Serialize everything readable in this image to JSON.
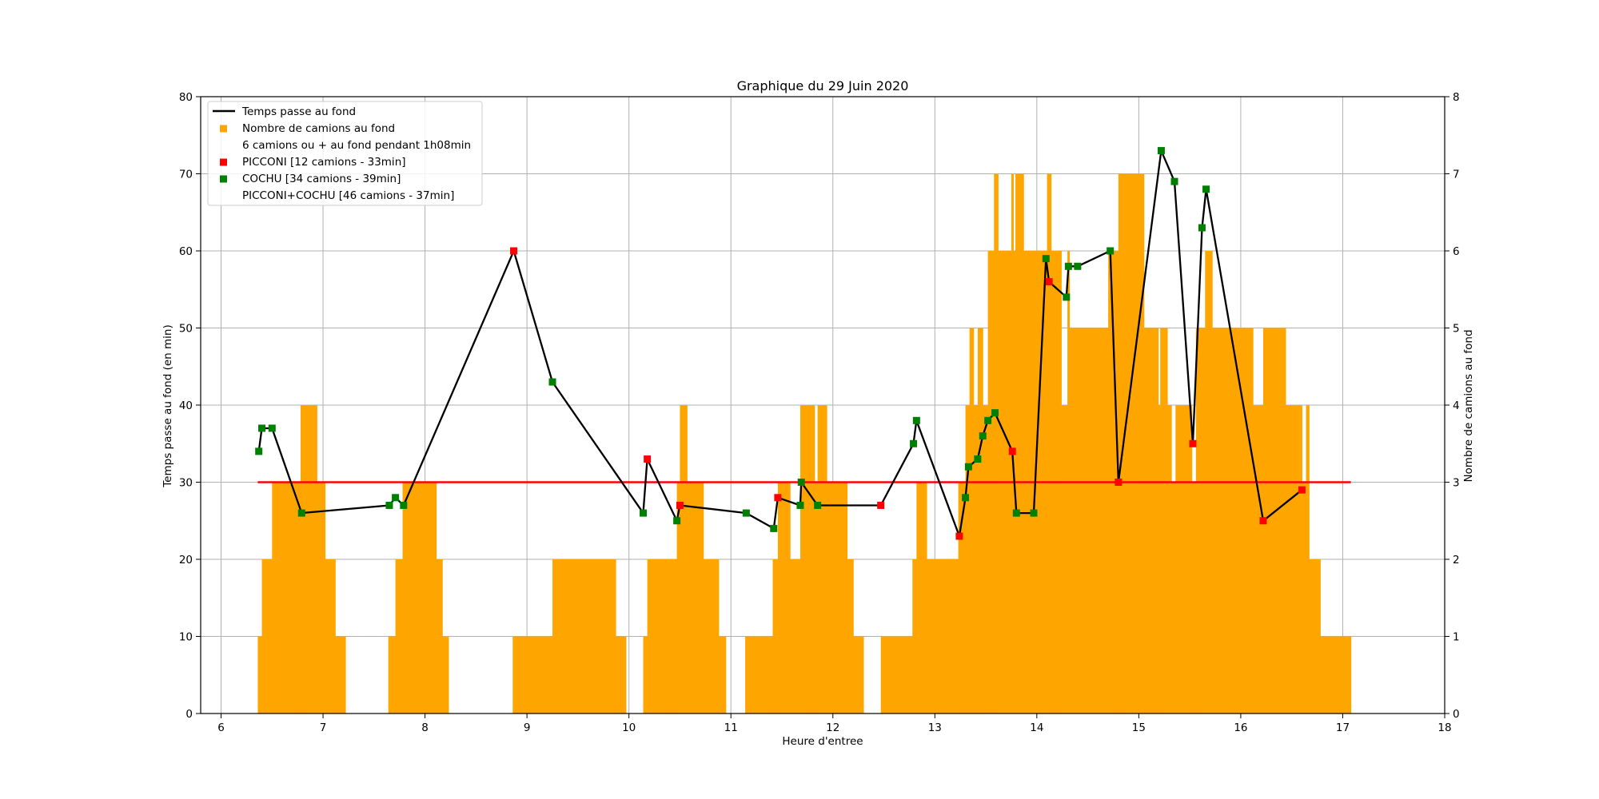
{
  "chart_data": {
    "type": "combo",
    "title": "Graphique du 29 Juin 2020",
    "xlabel": "Heure d'entree",
    "ylabel_left": "Temps passe au fond (en min)",
    "ylabel_right": "Nombre de camions au fond",
    "xlim": [
      5.8,
      18
    ],
    "ylim_left": [
      0,
      80
    ],
    "ylim_right": [
      0,
      8
    ],
    "x_ticks": [
      "6",
      "7",
      "8",
      "9",
      "10",
      "11",
      "12",
      "13",
      "14",
      "15",
      "16",
      "17",
      "18"
    ],
    "y_left_ticks": [
      "0",
      "10",
      "20",
      "30",
      "40",
      "50",
      "60",
      "70",
      "80"
    ],
    "y_right_ticks": [
      "0",
      "1",
      "2",
      "3",
      "4",
      "5",
      "6",
      "7",
      "8"
    ],
    "grid": true,
    "legend_position": "top-left",
    "legend": [
      {
        "label": "Temps passe au fond",
        "marker": "line",
        "color": "#000000"
      },
      {
        "label": "Nombre de camions au fond",
        "marker": "square",
        "color": "#ffa500"
      },
      {
        "label": "6 camions ou + au fond pendant 1h08min",
        "marker": "none",
        "color": ""
      },
      {
        "label": "PICCONI [12 camions - 33min]",
        "marker": "square",
        "color": "#ff0000"
      },
      {
        "label": "COCHU [34 camions - 39min]",
        "marker": "square",
        "color": "#008000"
      },
      {
        "label": "PICCONI+COCHU [46 camions - 37min]",
        "marker": "none",
        "color": ""
      }
    ],
    "colors": {
      "bars": "#ffa500",
      "line": "#000000",
      "reference": "#ff0000",
      "picconi": "#ff0000",
      "cochu": "#008000"
    },
    "reference_line": {
      "y": 30,
      "x_start": 6.36,
      "x_end": 17.08
    },
    "truck_count_steps": [
      [
        6.36,
        6.4,
        1
      ],
      [
        6.4,
        6.5,
        2
      ],
      [
        6.5,
        6.78,
        3
      ],
      [
        6.78,
        6.94,
        4
      ],
      [
        6.94,
        7.02,
        3
      ],
      [
        7.02,
        7.12,
        2
      ],
      [
        7.12,
        7.22,
        1
      ],
      [
        7.64,
        7.71,
        1
      ],
      [
        7.71,
        7.78,
        2
      ],
      [
        7.78,
        8.11,
        3
      ],
      [
        8.11,
        8.17,
        2
      ],
      [
        8.17,
        8.23,
        1
      ],
      [
        8.86,
        9.25,
        1
      ],
      [
        9.25,
        9.87,
        2
      ],
      [
        9.87,
        9.97,
        1
      ],
      [
        10.14,
        10.18,
        1
      ],
      [
        10.18,
        10.47,
        2
      ],
      [
        10.47,
        10.5,
        3
      ],
      [
        10.5,
        10.57,
        4
      ],
      [
        10.57,
        10.73,
        3
      ],
      [
        10.73,
        10.88,
        2
      ],
      [
        10.88,
        10.95,
        1
      ],
      [
        11.14,
        11.41,
        1
      ],
      [
        11.41,
        11.46,
        2
      ],
      [
        11.46,
        11.58,
        3
      ],
      [
        11.58,
        11.68,
        2
      ],
      [
        11.68,
        11.82,
        4
      ],
      [
        11.82,
        11.85,
        3
      ],
      [
        11.85,
        11.94,
        4
      ],
      [
        11.94,
        12.14,
        3
      ],
      [
        12.14,
        12.2,
        2
      ],
      [
        12.2,
        12.3,
        1
      ],
      [
        12.47,
        12.78,
        1
      ],
      [
        12.78,
        12.82,
        2
      ],
      [
        12.82,
        12.92,
        3
      ],
      [
        12.92,
        13.23,
        2
      ],
      [
        13.23,
        13.3,
        3
      ],
      [
        13.3,
        13.34,
        4
      ],
      [
        13.34,
        13.38,
        5
      ],
      [
        13.38,
        13.42,
        4
      ],
      [
        13.42,
        13.47,
        5
      ],
      [
        13.47,
        13.52,
        4
      ],
      [
        13.52,
        13.58,
        6
      ],
      [
        13.58,
        13.62,
        7
      ],
      [
        13.62,
        13.75,
        6
      ],
      [
        13.75,
        13.77,
        7
      ],
      [
        13.77,
        13.79,
        6
      ],
      [
        13.79,
        13.87,
        7
      ],
      [
        13.87,
        14.1,
        6
      ],
      [
        14.1,
        14.14,
        7
      ],
      [
        14.14,
        14.24,
        6
      ],
      [
        14.24,
        14.3,
        4
      ],
      [
        14.3,
        14.32,
        6
      ],
      [
        14.32,
        14.7,
        5
      ],
      [
        14.7,
        14.8,
        6
      ],
      [
        14.8,
        15.05,
        7
      ],
      [
        15.05,
        15.19,
        5
      ],
      [
        15.19,
        15.21,
        4
      ],
      [
        15.21,
        15.28,
        5
      ],
      [
        15.28,
        15.32,
        4
      ],
      [
        15.32,
        15.36,
        3
      ],
      [
        15.36,
        15.52,
        4
      ],
      [
        15.52,
        15.56,
        3
      ],
      [
        15.56,
        15.65,
        5
      ],
      [
        15.65,
        15.72,
        6
      ],
      [
        15.72,
        16.12,
        5
      ],
      [
        16.12,
        16.22,
        4
      ],
      [
        16.22,
        16.44,
        5
      ],
      [
        16.44,
        16.6,
        4
      ],
      [
        16.6,
        16.64,
        3
      ],
      [
        16.64,
        16.67,
        4
      ],
      [
        16.67,
        16.78,
        2
      ],
      [
        16.78,
        17.08,
        1
      ]
    ],
    "time_series": {
      "name": "Temps passe au fond",
      "points": [
        [
          6.37,
          34,
          "cochu"
        ],
        [
          6.4,
          37,
          "cochu"
        ],
        [
          6.5,
          37,
          "cochu"
        ],
        [
          6.79,
          26,
          "cochu"
        ],
        [
          7.65,
          27,
          "cochu"
        ],
        [
          7.71,
          28,
          "cochu"
        ],
        [
          7.79,
          27,
          "cochu"
        ],
        [
          8.87,
          60,
          "picconi"
        ],
        [
          9.25,
          43,
          "cochu"
        ],
        [
          10.14,
          26,
          "cochu"
        ],
        [
          10.18,
          33,
          "picconi"
        ],
        [
          10.47,
          25,
          "cochu"
        ],
        [
          10.5,
          27,
          "picconi"
        ],
        [
          11.15,
          26,
          "cochu"
        ],
        [
          11.42,
          24,
          "cochu"
        ],
        [
          11.46,
          28,
          "picconi"
        ],
        [
          11.68,
          27,
          "cochu"
        ],
        [
          11.69,
          30,
          "cochu"
        ],
        [
          11.85,
          27,
          "cochu"
        ],
        [
          12.47,
          27,
          "picconi"
        ],
        [
          12.79,
          35,
          "cochu"
        ],
        [
          12.82,
          38,
          "cochu"
        ],
        [
          13.24,
          23,
          "picconi"
        ],
        [
          13.3,
          28,
          "cochu"
        ],
        [
          13.33,
          32,
          "cochu"
        ],
        [
          13.42,
          33,
          "cochu"
        ],
        [
          13.47,
          36,
          "cochu"
        ],
        [
          13.52,
          38,
          "cochu"
        ],
        [
          13.59,
          39,
          "cochu"
        ],
        [
          13.76,
          34,
          "picconi"
        ],
        [
          13.8,
          26,
          "cochu"
        ],
        [
          13.97,
          26,
          "cochu"
        ],
        [
          14.09,
          59,
          "cochu"
        ],
        [
          14.12,
          56,
          "picconi"
        ],
        [
          14.29,
          54,
          "cochu"
        ],
        [
          14.31,
          58,
          "cochu"
        ],
        [
          14.4,
          58,
          "cochu"
        ],
        [
          14.72,
          60,
          "cochu"
        ],
        [
          14.8,
          30,
          "picconi"
        ],
        [
          15.22,
          73,
          "cochu"
        ],
        [
          15.35,
          69,
          "cochu"
        ],
        [
          15.53,
          35,
          "picconi"
        ],
        [
          15.62,
          63,
          "cochu"
        ],
        [
          15.66,
          68,
          "cochu"
        ],
        [
          16.22,
          25,
          "picconi"
        ],
        [
          16.6,
          29,
          "picconi"
        ]
      ]
    }
  }
}
